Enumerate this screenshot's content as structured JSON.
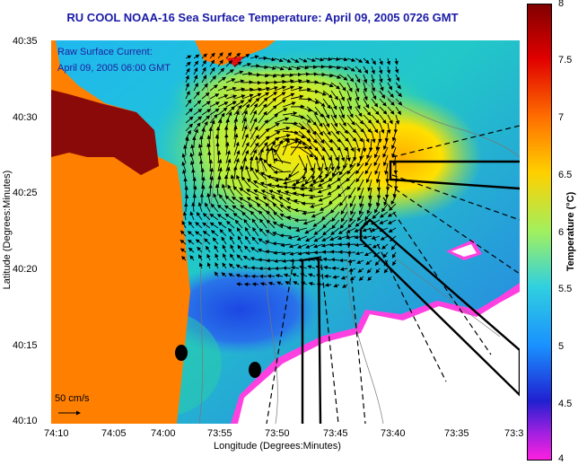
{
  "title": "RU COOL  NOAA-16  Sea Surface Temperature:  April 09, 2005 0726 GMT",
  "legend": {
    "line1": "Raw Surface Current:",
    "line2": "April 09, 2005 06:00 GMT",
    "scale_label": "50 cm/s"
  },
  "axes": {
    "xlabel": "Longitude (Degrees:Minutes)",
    "ylabel": "Latitude (Degrees:Minutes)",
    "xticks": [
      "74:10",
      "74:05",
      "74:00",
      "73:55",
      "73:50",
      "73:45",
      "73:40",
      "73:35",
      "73:3"
    ],
    "yticks": [
      "40:35",
      "40:30",
      "40:25",
      "40:20",
      "40:15",
      "40:10"
    ]
  },
  "colorbar": {
    "title": "Temperature (°C)",
    "ticks": [
      "8",
      "7.5",
      "7",
      "6.5",
      "6",
      "5.5",
      "5",
      "4.5",
      "4"
    ]
  },
  "colors": {
    "land": "#ff7f00",
    "title_text": "#1a1aa8"
  }
}
